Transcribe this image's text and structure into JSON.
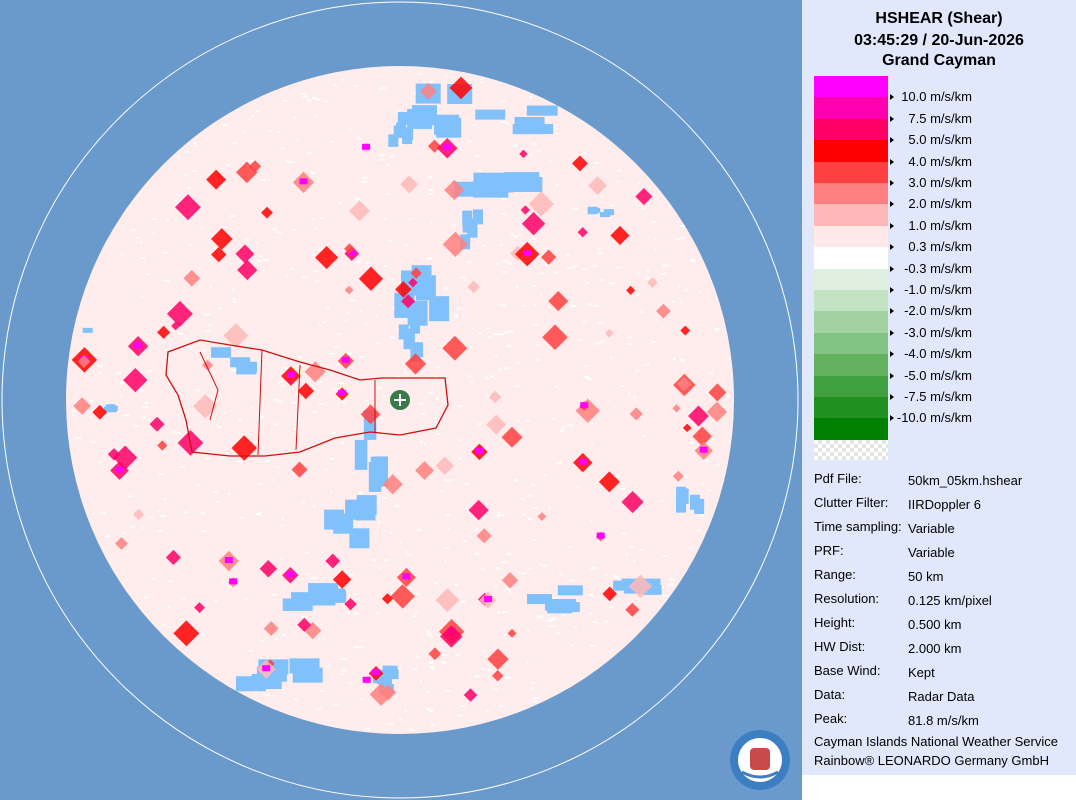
{
  "header": {
    "title": "HSHEAR (Shear)",
    "time": "03:45:29 / 20-Jun-2026",
    "location": "Grand Cayman"
  },
  "legend": {
    "colors": [
      "#ff00ff",
      "#ff00b0",
      "#ff0066",
      "#ff0000",
      "#ff4040",
      "#ff8080",
      "#ffb8b8",
      "#ffe8e8",
      "#ffffff",
      "#e0f0e0",
      "#c2e2c2",
      "#a2d2a2",
      "#82c282",
      "#62b262",
      "#40a040",
      "#209020",
      "#008000"
    ],
    "labels": [
      "10.0 m/s/km",
      "7.5 m/s/km",
      "5.0 m/s/km",
      "4.0 m/s/km",
      "3.0 m/s/km",
      "2.0 m/s/km",
      "1.0 m/s/km",
      "0.3 m/s/km",
      "-0.3 m/s/km",
      "-1.0 m/s/km",
      "-2.0 m/s/km",
      "-3.0 m/s/km",
      "-4.0 m/s/km",
      "-5.0 m/s/km",
      "-7.5 m/s/km",
      "-10.0 m/s/km"
    ]
  },
  "info": [
    [
      "Pdf File:",
      "50km_05km.hshear"
    ],
    [
      "Clutter Filter:",
      "IIRDoppler 6"
    ],
    [
      "Time sampling:",
      "Variable"
    ],
    [
      "PRF:",
      "Variable"
    ],
    [
      "Range:",
      "50 km"
    ],
    [
      "Resolution:",
      "0.125 km/pixel"
    ],
    [
      "Height:",
      "0.500 km"
    ],
    [
      "HW Dist:",
      "2.000 km"
    ],
    [
      "Base Wind:",
      "Kept"
    ],
    [
      "Data:",
      "Radar Data"
    ],
    [
      "Peak:",
      "81.8 m/s/km"
    ]
  ],
  "footer": [
    "Cayman Islands National Weather Service",
    "Rainbow® LEONARDO Germany GmbH"
  ]
}
